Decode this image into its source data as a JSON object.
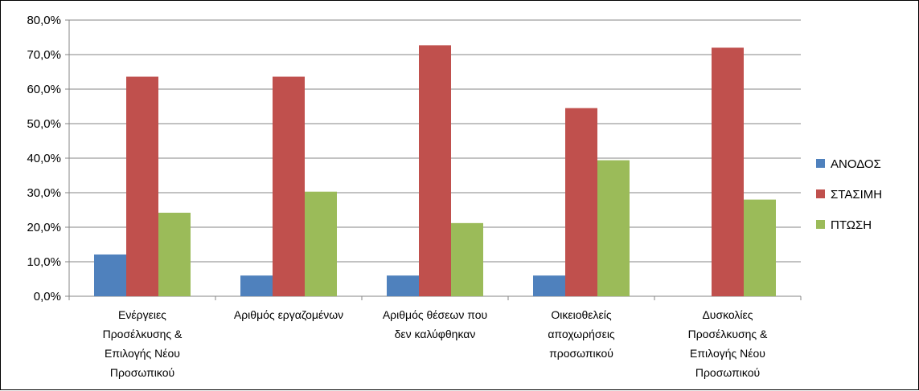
{
  "chart_data": {
    "type": "bar",
    "categories": [
      [
        "Ενέργειες",
        "Προσέλκυσης &",
        "Επιλογής Νέου",
        "Προσωπικού"
      ],
      [
        "Αριθμός εργαζομένων"
      ],
      [
        "Αριθμός θέσεων που",
        "δεν καλύφθηκαν"
      ],
      [
        "Οικειοθελείς",
        "αποχωρήσεις",
        "προσωπικού"
      ],
      [
        "Δυσκολίες",
        "Προσέλκυσης &",
        "Επιλογής Νέου",
        "Προσωπικού"
      ]
    ],
    "series": [
      {
        "name": "ΑΝΟΔΟΣ",
        "color": "#4F81BD",
        "values": [
          12.1,
          6.0,
          6.0,
          6.0,
          0.0
        ]
      },
      {
        "name": "ΣΤΑΣΙΜΗ",
        "color": "#C0504D",
        "values": [
          63.6,
          63.6,
          72.7,
          54.5,
          72.0
        ]
      },
      {
        "name": "ΠΤΩΣΗ",
        "color": "#9BBB59",
        "values": [
          24.2,
          30.3,
          21.2,
          39.4,
          28.0
        ]
      }
    ],
    "ylim": [
      0,
      80
    ],
    "yticks": [
      "0,0%",
      "10,0%",
      "20,0%",
      "30,0%",
      "40,0%",
      "50,0%",
      "60,0%",
      "70,0%",
      "80,0%"
    ],
    "grid": true,
    "legend_position": "right"
  }
}
